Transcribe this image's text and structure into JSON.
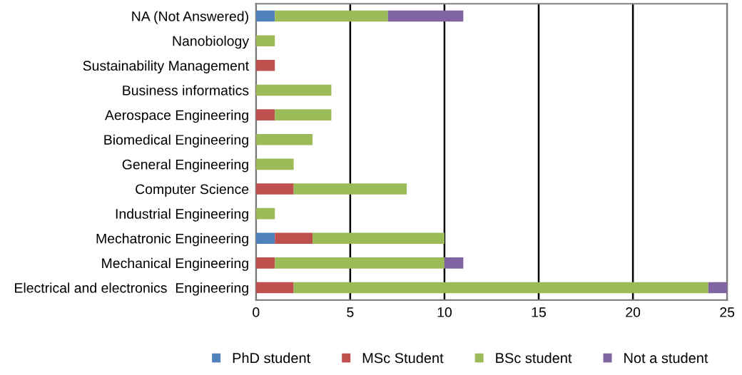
{
  "chart_data": {
    "type": "bar",
    "orientation": "horizontal",
    "stacked": true,
    "categories": [
      "NA (Not Answered)",
      "Nanobiology",
      "Sustainability Management",
      "Business informatics",
      "Aerospace Engineering",
      "Biomedical Engineering",
      "General Engineering",
      "Computer Science",
      "Industrial Engineering",
      "Mechatronic Engineering",
      "Mechanical Engineering",
      "Electrical and electronics  Engineering"
    ],
    "series": [
      {
        "name": "PhD student",
        "color": "#4f81bd",
        "values": [
          1,
          0,
          0,
          0,
          0,
          0,
          0,
          0,
          0,
          1,
          0,
          0
        ]
      },
      {
        "name": "MSc Student",
        "color": "#c0504d",
        "values": [
          0,
          0,
          1,
          0,
          1,
          0,
          0,
          2,
          0,
          2,
          1,
          2
        ]
      },
      {
        "name": "BSc student",
        "color": "#9bbb59",
        "values": [
          6,
          1,
          0,
          4,
          3,
          3,
          2,
          6,
          1,
          7,
          9,
          22
        ]
      },
      {
        "name": "Not a student",
        "color": "#8064a2",
        "values": [
          4,
          0,
          0,
          0,
          0,
          0,
          0,
          0,
          0,
          0,
          1,
          1
        ]
      }
    ],
    "xlim": [
      0,
      25
    ],
    "xticks": [
      0,
      5,
      10,
      15,
      20,
      25
    ],
    "grid": "x",
    "legend": "bottom"
  }
}
